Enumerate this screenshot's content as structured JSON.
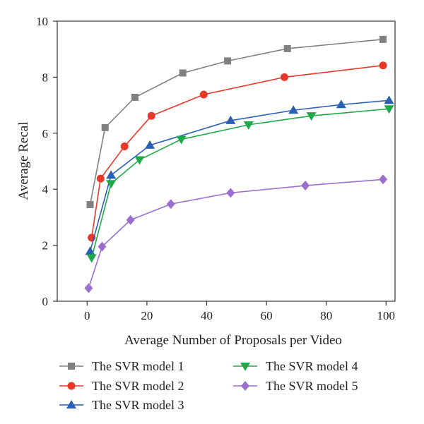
{
  "chart_data": {
    "type": "line",
    "title": "",
    "xlabel": "Average Number of Proposals per Video",
    "ylabel": "Average Recal",
    "xlim": [
      -10,
      103
    ],
    "ylim": [
      0,
      10
    ],
    "xticks": [
      0,
      20,
      40,
      60,
      80,
      100
    ],
    "yticks": [
      0,
      2,
      4,
      6,
      8,
      10
    ],
    "grid": false,
    "legend_position": "bottom",
    "series": [
      {
        "name": "The SVR model 1",
        "color": "#808080",
        "marker": "square",
        "x": [
          1,
          6,
          16,
          32,
          47,
          67,
          99
        ],
        "y": [
          3.45,
          6.2,
          7.28,
          8.15,
          8.58,
          9.02,
          9.35
        ]
      },
      {
        "name": "The SVR model 2",
        "color": "#e8382a",
        "marker": "circle",
        "x": [
          1.5,
          4.5,
          12.5,
          21.5,
          39,
          66,
          99
        ],
        "y": [
          2.27,
          4.38,
          5.53,
          6.62,
          7.38,
          8.0,
          8.42
        ]
      },
      {
        "name": "The SVR model 3",
        "color": "#2b5fb4",
        "marker": "triangle-up",
        "x": [
          1,
          8,
          21,
          48,
          69,
          85,
          101
        ],
        "y": [
          1.78,
          4.5,
          5.57,
          6.45,
          6.82,
          7.02,
          7.17
        ]
      },
      {
        "name": "The SVR model 4",
        "color": "#1faa4a",
        "marker": "triangle-down",
        "x": [
          1.5,
          8,
          17.5,
          31.5,
          54,
          75,
          101
        ],
        "y": [
          1.55,
          4.2,
          5.05,
          5.78,
          6.3,
          6.62,
          6.87
        ]
      },
      {
        "name": "The SVR model 5",
        "color": "#9b6fd0",
        "marker": "diamond",
        "x": [
          0.5,
          5,
          14.5,
          28,
          48,
          73,
          99
        ],
        "y": [
          0.47,
          1.95,
          2.9,
          3.47,
          3.87,
          4.13,
          4.35
        ]
      }
    ]
  }
}
